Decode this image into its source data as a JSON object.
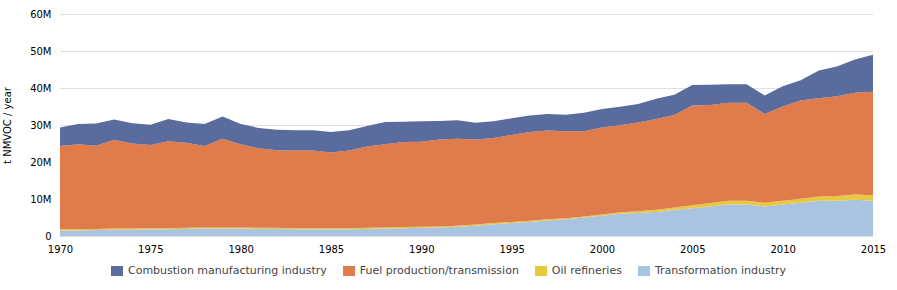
{
  "chart_data": {
    "type": "area",
    "stacked": true,
    "ylabel": "t NMVOC / year",
    "x": [
      1970,
      1971,
      1972,
      1973,
      1974,
      1975,
      1976,
      1977,
      1978,
      1979,
      1980,
      1981,
      1982,
      1983,
      1984,
      1985,
      1986,
      1987,
      1988,
      1989,
      1990,
      1991,
      1992,
      1993,
      1994,
      1995,
      1996,
      1997,
      1998,
      1999,
      2000,
      2001,
      2002,
      2003,
      2004,
      2005,
      2006,
      2007,
      2008,
      2009,
      2010,
      2011,
      2012,
      2013,
      2014,
      2015
    ],
    "series": [
      {
        "name": "Transformation industry",
        "color": "#a8c4e0",
        "values": [
          1.5,
          1.5,
          1.6,
          1.7,
          1.7,
          1.8,
          1.8,
          1.9,
          2.0,
          2.0,
          2.0,
          1.9,
          1.9,
          1.8,
          1.8,
          1.8,
          1.8,
          1.9,
          2.0,
          2.1,
          2.2,
          2.3,
          2.5,
          2.8,
          3.2,
          3.5,
          3.8,
          4.2,
          4.5,
          5.0,
          5.5,
          6.0,
          6.2,
          6.5,
          7.0,
          7.5,
          8.0,
          8.5,
          8.5,
          8.0,
          8.5,
          9.0,
          9.5,
          9.5,
          9.8,
          9.5
        ]
      },
      {
        "name": "Oil refineries",
        "color": "#e8c840",
        "values": [
          0.3,
          0.3,
          0.3,
          0.3,
          0.3,
          0.3,
          0.3,
          0.3,
          0.3,
          0.3,
          0.3,
          0.3,
          0.3,
          0.3,
          0.3,
          0.3,
          0.3,
          0.3,
          0.3,
          0.3,
          0.3,
          0.3,
          0.3,
          0.3,
          0.3,
          0.3,
          0.3,
          0.3,
          0.3,
          0.3,
          0.3,
          0.4,
          0.5,
          0.6,
          0.7,
          0.8,
          0.9,
          1.0,
          1.0,
          1.0,
          1.0,
          1.1,
          1.2,
          1.3,
          1.4,
          1.5
        ]
      },
      {
        "name": "Fuel production/transmission",
        "color": "#e07b4b",
        "values": [
          22.5,
          23.0,
          22.5,
          24.0,
          23.0,
          22.5,
          23.5,
          23.0,
          22.0,
          24.0,
          22.5,
          21.5,
          21.0,
          21.0,
          21.0,
          20.5,
          21.0,
          22.0,
          22.5,
          23.0,
          23.0,
          23.5,
          23.5,
          23.0,
          23.0,
          23.5,
          24.0,
          24.0,
          23.5,
          23.0,
          23.5,
          23.5,
          24.0,
          24.5,
          25.0,
          27.0,
          26.5,
          26.5,
          26.5,
          24.0,
          25.5,
          26.5,
          26.5,
          27.0,
          27.5,
          28.0
        ]
      },
      {
        "name": "Combustion manufacturing industry",
        "color": "#5a6b9e",
        "values": [
          5.0,
          5.5,
          6.0,
          5.5,
          5.5,
          5.5,
          6.0,
          5.5,
          6.0,
          6.0,
          5.5,
          5.5,
          5.5,
          5.5,
          5.5,
          5.5,
          5.5,
          5.5,
          6.0,
          5.5,
          5.5,
          5.0,
          5.0,
          4.5,
          4.5,
          4.5,
          4.5,
          4.5,
          4.5,
          5.0,
          5.0,
          5.0,
          5.0,
          5.5,
          5.5,
          5.5,
          5.5,
          5.0,
          5.0,
          5.0,
          5.5,
          5.5,
          7.5,
          8.0,
          9.0,
          10.0
        ]
      }
    ],
    "xlim": [
      1970,
      2015
    ],
    "xticks": [
      1970,
      1975,
      1980,
      1985,
      1990,
      1995,
      2000,
      2005,
      2010,
      2015
    ],
    "ylim": [
      0,
      60
    ],
    "yticks": [
      0,
      {
        "value": 10,
        "label": "10M"
      },
      {
        "value": 20,
        "label": "20M"
      },
      {
        "value": 30,
        "label": "30M"
      },
      {
        "value": 40,
        "label": "40M"
      },
      {
        "value": 50,
        "label": "50M"
      },
      {
        "value": 60,
        "label": "60M"
      }
    ],
    "grid": true,
    "legend": "bottom"
  }
}
